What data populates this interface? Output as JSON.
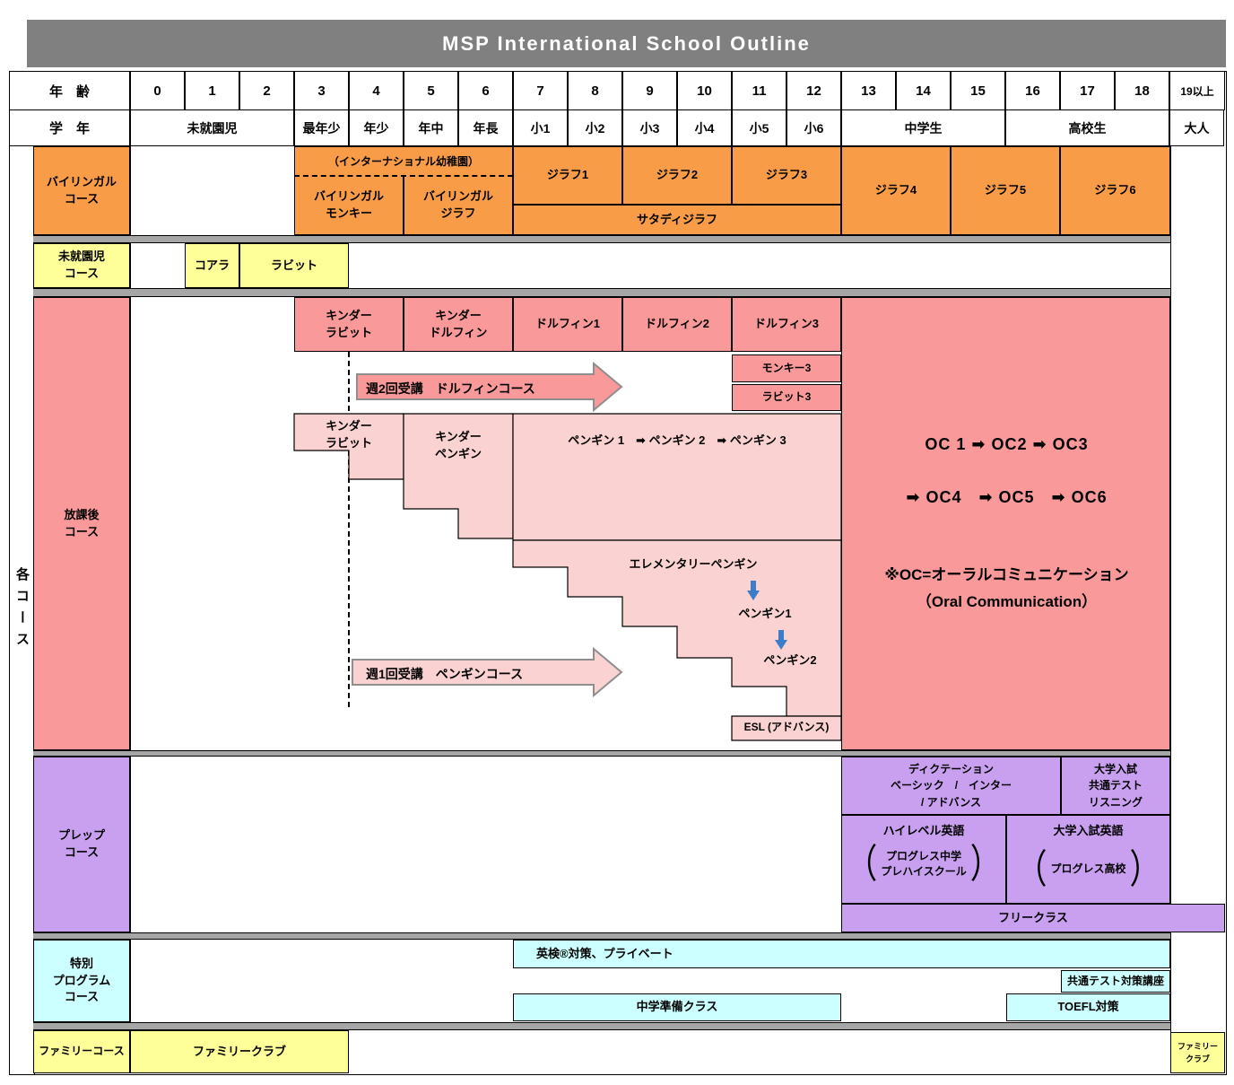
{
  "title": "MSP International School Outline",
  "side_label": "各コース",
  "header": {
    "age_label": "年　齢",
    "grade_label": "学　年",
    "ages": [
      "0",
      "1",
      "2",
      "3",
      "4",
      "5",
      "6",
      "7",
      "8",
      "9",
      "10",
      "11",
      "12",
      "13",
      "14",
      "15",
      "16",
      "17",
      "18",
      "19以上"
    ],
    "grades": [
      {
        "label": "未就園児",
        "cols": 3
      },
      {
        "label": "最年少",
        "cols": 1
      },
      {
        "label": "年少",
        "cols": 1
      },
      {
        "label": "年中",
        "cols": 1
      },
      {
        "label": "年長",
        "cols": 1
      },
      {
        "label": "小1",
        "cols": 1
      },
      {
        "label": "小2",
        "cols": 1
      },
      {
        "label": "小3",
        "cols": 1
      },
      {
        "label": "小4",
        "cols": 1
      },
      {
        "label": "小5",
        "cols": 1
      },
      {
        "label": "小6",
        "cols": 1
      },
      {
        "label": "中学生",
        "cols": 3
      },
      {
        "label": "高校生",
        "cols": 3
      },
      {
        "label": "大人",
        "cols": 1
      }
    ]
  },
  "courses": {
    "bilingual_lines": [
      "バイリンガル",
      "コース"
    ],
    "preschool_lines": [
      "未就園児",
      "コース"
    ],
    "afterschool_lines": [
      "放課後",
      "コース"
    ],
    "prep_lines": [
      "プレップ",
      "コース"
    ],
    "special_lines": [
      "特別",
      "プログラム",
      "コース"
    ],
    "family_label": "ファミリーコース"
  },
  "bilingual": {
    "intl_kindergarten": "（インターナショナル幼稚園）",
    "monkey_lines": [
      "バイリンガル",
      "モンキー"
    ],
    "giraffe_lines": [
      "バイリンガル",
      "ジラフ"
    ],
    "giraffe1": "ジラフ1",
    "giraffe2": "ジラフ2",
    "giraffe3": "ジラフ3",
    "saturday": "サタディジラフ",
    "giraffe4": "ジラフ4",
    "giraffe5": "ジラフ5",
    "giraffe6": "ジラフ6"
  },
  "preschool": {
    "koala": "コアラ",
    "rabbit": "ラビット"
  },
  "afterschool": {
    "kinder_rabbit_lines": [
      "キンダー",
      "ラビット"
    ],
    "kinder_dolphin_lines": [
      "キンダー",
      "ドルフィン"
    ],
    "dolphin1": "ドルフィン1",
    "dolphin2": "ドルフィン2",
    "dolphin3": "ドルフィン3",
    "monkey3": "モンキー3",
    "rabbit3": "ラビット3",
    "arrow_dolphin": "週2回受講　ドルフィンコース",
    "kinder_rabbit2_lines": [
      "キンダー",
      "ラビット"
    ],
    "kinder_penguin_lines": [
      "キンダー",
      "ペンギン"
    ],
    "penguin_series": "ペンギン 1　➡ ペンギン 2　➡ ペンギン 3",
    "elementary_penguin": "エレメンタリーペンギン",
    "penguin1": "ペンギン1",
    "penguin2": "ペンギン2",
    "arrow_penguin": "週1回受講　ペンギンコース",
    "esl": "ESL (アドバンス)",
    "oc_line1": "OC 1 ➡ OC2 ➡ OC3",
    "oc_line2": "➡ OC4　➡ OC5　➡ OC6",
    "oc_note1": "※OC=オーラルコミュニケーション",
    "oc_note2": "（Oral Communication）"
  },
  "prep": {
    "dictation_lines": [
      "ディクテーション",
      "ベーシック　/　インター",
      "/ アドバンス"
    ],
    "listening_lines": [
      "大学入試",
      "共通テスト",
      "リスニング"
    ],
    "highlevel_title": "ハイレベル英語",
    "highlevel_paren_lines": [
      "プログレス中学",
      "プレハイスクール"
    ],
    "univ_title": "大学入試英語",
    "univ_paren": "プログレス高校",
    "paren_open": "（",
    "paren_close": "）",
    "free_class": "フリークラス"
  },
  "special": {
    "eiken": "英検®対策、プライベート",
    "kyotsu": "共通テスト対策講座",
    "chugaku": "中学準備クラス",
    "toefl": "TOEFL対策"
  },
  "family": {
    "club": "ファミリークラブ",
    "club_small_lines": [
      "ファミリー",
      "クラブ"
    ]
  },
  "colors": {
    "orange": "#F89C47",
    "yellow": "#FFFF99",
    "salmon": "#FA9999",
    "light_pink": "#FAD2D1",
    "purple": "#C9A0F0",
    "cyan": "#CCFFFF",
    "title_gray": "#808080",
    "separator_gray": "#A6A6A6",
    "arrow_blue": "#3B7DC8",
    "arrow_outline": "#8E8E8E"
  }
}
